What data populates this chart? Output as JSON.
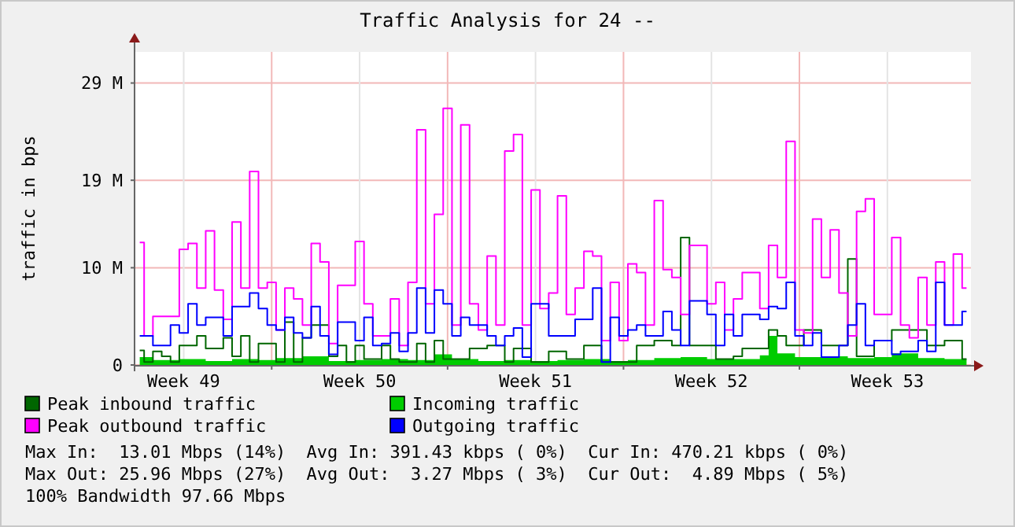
{
  "chart_data": {
    "type": "step",
    "title": "Traffic Analysis for 24 --",
    "ylabel": "traffic in bps",
    "categories": [
      null,
      null,
      null,
      null,
      null,
      "Week 49",
      null,
      null,
      null,
      null,
      null,
      null,
      null,
      null,
      null,
      null,
      null,
      null,
      null,
      null,
      null,
      null,
      null,
      null,
      null,
      "Week 50",
      null,
      null,
      null,
      null,
      null,
      null,
      null,
      null,
      null,
      null,
      null,
      null,
      null,
      null,
      null,
      null,
      null,
      null,
      null,
      "Week 51",
      null,
      null,
      null,
      null,
      null,
      null,
      null,
      null,
      null,
      null,
      null,
      null,
      null,
      null,
      null,
      null,
      null,
      null,
      null,
      "Week 52",
      null,
      null,
      null,
      null,
      null,
      null,
      null,
      null,
      null,
      null,
      null,
      null,
      null,
      null,
      null,
      null,
      null,
      null,
      null,
      "Week 53",
      null,
      null,
      null,
      null,
      null,
      null,
      null,
      null,
      null
    ],
    "ylim": [
      0,
      32.2
    ],
    "yticks": [
      0,
      {
        "value": 10,
        "label": "10 M"
      },
      {
        "value": 19,
        "label": "19 M"
      },
      {
        "value": 29,
        "label": "29 M"
      }
    ],
    "grid": true,
    "legend": "bottom",
    "series": [
      {
        "name": "Peak inbound traffic",
        "color": "#006600",
        "values": [
          1.5,
          0.3,
          1.4,
          0.9,
          0.3,
          2.0,
          2.0,
          3.0,
          1.7,
          1.7,
          2.8,
          0.9,
          3.0,
          0.3,
          2.2,
          2.2,
          0.3,
          4.4,
          0.3,
          2.8,
          4.1,
          4.1,
          0.9,
          2.0,
          0.3,
          2.0,
          0.6,
          0.6,
          2.0,
          0.6,
          0.3,
          0.3,
          2.2,
          0.3,
          2.5,
          0.6,
          0.6,
          0.6,
          1.7,
          1.7,
          2.0,
          2.0,
          0.3,
          1.7,
          1.7,
          0.3,
          0.3,
          1.4,
          1.4,
          0.6,
          0.6,
          2.0,
          2.0,
          0.3,
          0.3,
          0.3,
          0.3,
          2.0,
          2.0,
          2.5,
          2.5,
          2.0,
          13.1,
          2.0,
          2.0,
          2.0,
          0.6,
          0.6,
          0.9,
          1.7,
          1.7,
          1.7,
          3.6,
          3.0,
          2.0,
          2.0,
          3.6,
          3.6,
          2.0,
          2.0,
          2.0,
          10.9,
          0.9,
          0.9,
          2.5,
          2.5,
          3.6,
          3.6,
          3.6,
          3.6,
          2.0,
          2.0,
          2.5,
          2.5,
          0.6
        ]
      },
      {
        "name": "Incoming traffic",
        "type": "area",
        "color": "#00cc00",
        "values": [
          0.8,
          0.8,
          0.5,
          0.5,
          0.5,
          0.6,
          0.6,
          0.6,
          0.4,
          0.4,
          0.4,
          0.6,
          0.6,
          0.6,
          0.5,
          0.5,
          0.7,
          0.7,
          0.7,
          0.9,
          0.9,
          0.9,
          0.4,
          0.4,
          0.4,
          0.5,
          0.5,
          0.5,
          0.6,
          0.6,
          0.6,
          0.5,
          0.5,
          0.5,
          1.1,
          1.1,
          0.6,
          0.6,
          0.6,
          0.4,
          0.4,
          0.4,
          0.5,
          0.5,
          0.5,
          0.4,
          0.4,
          0.4,
          0.5,
          0.5,
          0.5,
          0.6,
          0.6,
          0.6,
          0.4,
          0.4,
          0.5,
          0.5,
          0.5,
          0.7,
          0.7,
          0.7,
          0.8,
          0.8,
          0.8,
          0.6,
          0.6,
          0.6,
          0.6,
          0.6,
          0.6,
          1.0,
          3.0,
          1.2,
          1.2,
          0.8,
          0.8,
          0.8,
          0.9,
          0.9,
          0.9,
          0.7,
          0.7,
          0.7,
          0.8,
          0.8,
          1.2,
          1.2,
          1.2,
          0.7,
          0.7,
          0.7,
          0.6,
          0.6,
          0.6
        ]
      },
      {
        "name": "Peak outbound traffic",
        "color": "#ff00ff",
        "values": [
          12.6,
          3.0,
          5.0,
          5.0,
          5.0,
          11.9,
          12.5,
          7.9,
          13.8,
          7.7,
          4.7,
          14.7,
          7.9,
          19.9,
          7.9,
          8.5,
          3.6,
          7.9,
          6.8,
          4.1,
          12.5,
          10.6,
          2.2,
          8.2,
          8.2,
          12.7,
          6.3,
          3.0,
          3.0,
          6.8,
          2.0,
          8.5,
          24.2,
          6.3,
          15.5,
          26.4,
          4.1,
          24.7,
          6.3,
          3.6,
          11.2,
          4.1,
          22.0,
          23.7,
          4.1,
          18.0,
          5.8,
          7.4,
          17.4,
          5.2,
          7.9,
          11.7,
          11.2,
          2.5,
          8.5,
          2.5,
          10.4,
          9.5,
          4.1,
          16.9,
          9.8,
          9.0,
          5.2,
          12.3,
          12.3,
          6.3,
          8.5,
          3.6,
          6.8,
          9.5,
          9.5,
          5.8,
          12.3,
          9.0,
          23.0,
          3.6,
          3.3,
          15.0,
          9.0,
          13.9,
          7.4,
          3.0,
          15.8,
          17.1,
          5.2,
          5.2,
          13.1,
          4.1,
          2.8,
          9.0,
          4.1,
          10.6,
          4.1,
          11.4,
          7.9
        ]
      },
      {
        "name": "Outgoing traffic",
        "color": "#0000ff",
        "values": [
          3.0,
          3.0,
          2.0,
          2.0,
          4.1,
          3.3,
          6.3,
          4.1,
          4.9,
          4.9,
          3.0,
          6.0,
          6.0,
          7.4,
          5.8,
          4.1,
          3.6,
          4.9,
          3.3,
          2.8,
          6.0,
          3.0,
          1.1,
          4.4,
          4.4,
          2.5,
          4.9,
          2.0,
          2.2,
          3.3,
          1.4,
          3.3,
          7.9,
          3.3,
          7.7,
          6.3,
          3.0,
          4.9,
          4.1,
          4.1,
          3.0,
          2.0,
          3.0,
          3.8,
          0.8,
          6.3,
          6.3,
          3.0,
          3.0,
          3.0,
          4.7,
          4.7,
          7.9,
          0.3,
          4.9,
          3.0,
          3.6,
          4.1,
          3.0,
          3.0,
          5.5,
          3.6,
          2.0,
          6.6,
          6.6,
          5.2,
          2.0,
          5.2,
          3.0,
          5.2,
          5.2,
          4.7,
          6.0,
          5.8,
          8.5,
          3.0,
          2.0,
          3.3,
          0.8,
          0.8,
          2.0,
          4.1,
          6.3,
          2.0,
          2.5,
          2.5,
          1.1,
          1.4,
          1.4,
          2.5,
          1.4,
          8.5,
          4.1,
          4.1,
          5.5
        ]
      }
    ],
    "annotations": [
      "Max In:  13.01 Mbps (14%)  Avg In: 391.43 kbps ( 0%)  Cur In: 470.21 kbps ( 0%)",
      "Max Out: 25.96 Mbps (27%)  Avg Out:  3.27 Mbps ( 3%)  Cur Out:  4.89 Mbps ( 5%)",
      "100% Bandwidth 97.66 Mbps"
    ]
  }
}
